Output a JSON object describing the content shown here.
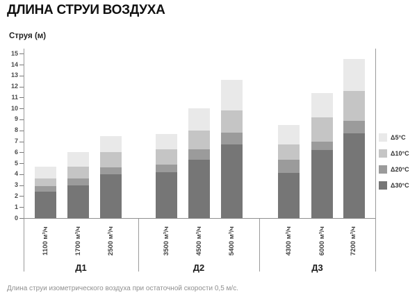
{
  "title": "ДЛИНА СТРУИ ВОЗДУХА",
  "footnote": "Длина струи изометрического воздуха при остаточной скорости 0,5 м/с.",
  "legend": {
    "items": [
      {
        "label": "Δ5°C",
        "color": "#e9e9e9"
      },
      {
        "label": "Δ10°C",
        "color": "#c5c5c5"
      },
      {
        "label": "Δ20°C",
        "color": "#9b9b9b"
      },
      {
        "label": "Δ30°C",
        "color": "#767676"
      }
    ]
  },
  "chart_data": {
    "type": "bar",
    "stacked": true,
    "title": "ДЛИНА СТРУИ ВОЗДУХА",
    "ylabel": "Струя (м)",
    "ylim": [
      0,
      15
    ],
    "ytick_step": 1,
    "grid": false,
    "legend_position": "right",
    "groups": [
      {
        "label": "Д1",
        "categories": [
          "1100 м³/ч",
          "1700 м³/ч",
          "2500 м³/ч"
        ]
      },
      {
        "label": "Д2",
        "categories": [
          "3500 м³/ч",
          "4500 м³/ч",
          "5400 м³/ч"
        ]
      },
      {
        "label": "Д3",
        "categories": [
          "4300 м³/ч",
          "6000 м³/ч",
          "7200 м³/ч"
        ]
      }
    ],
    "series": [
      {
        "name": "Δ30°C",
        "color": "#767676",
        "values": [
          2.4,
          3.0,
          4.0,
          4.2,
          5.3,
          6.7,
          4.1,
          6.2,
          7.7
        ]
      },
      {
        "name": "Δ20°C",
        "color": "#9b9b9b",
        "values": [
          0.5,
          0.6,
          0.6,
          0.7,
          1.0,
          1.1,
          1.2,
          0.8,
          1.2
        ]
      },
      {
        "name": "Δ10°C",
        "color": "#c5c5c5",
        "values": [
          0.7,
          1.1,
          1.4,
          1.4,
          1.7,
          2.0,
          1.4,
          2.2,
          2.7
        ]
      },
      {
        "name": "Δ5°C",
        "color": "#e9e9e9",
        "values": [
          1.1,
          1.3,
          1.5,
          1.4,
          2.0,
          2.8,
          1.8,
          2.2,
          2.9
        ]
      }
    ],
    "totals": [
      4.7,
      6.0,
      7.5,
      7.7,
      10.0,
      12.6,
      8.5,
      11.4,
      14.5
    ]
  }
}
